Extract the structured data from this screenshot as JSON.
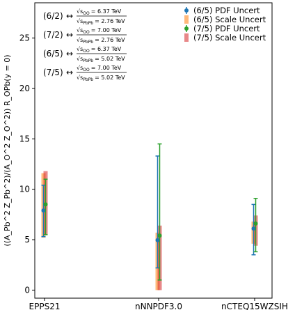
{
  "chart_data": {
    "type": "errorbar",
    "categories": [
      "EPPS21",
      "nNNPDF3.0",
      "nCTEQ15WZSIH"
    ],
    "ylabel": "((A_Pb^2 Z_Pb^2)/(A_O^2 Z_O^2)) R_OPb(y = 0)",
    "ylim": [
      -0.8,
      28.5
    ],
    "yticks": [
      0,
      5,
      10,
      15,
      20,
      25
    ],
    "grid": false,
    "legend_position": "top-right",
    "series": [
      {
        "name": "(6/5) PDF Uncert",
        "kind": "pdf",
        "color": "#1f77b4",
        "values": [
          7.9,
          4.95,
          6.1
        ],
        "low": [
          5.3,
          2.2,
          3.5
        ],
        "high": [
          10.4,
          13.3,
          8.5
        ]
      },
      {
        "name": "(6/5) Scale Uncert",
        "kind": "scale",
        "color": "#ff7f0e",
        "values": [
          7.9,
          4.95,
          6.1
        ],
        "low": [
          5.2,
          0.0,
          4.6
        ],
        "high": [
          11.6,
          5.7,
          6.8
        ]
      },
      {
        "name": "(7/5) PDF Uncert",
        "kind": "pdf",
        "color": "#2ca02c",
        "values": [
          8.5,
          5.4,
          6.6
        ],
        "low": [
          5.5,
          1.0,
          3.8
        ],
        "high": [
          11.0,
          14.5,
          9.1
        ]
      },
      {
        "name": "(7/5) Scale Uncert",
        "kind": "scale",
        "color": "#d62728",
        "values": [
          8.5,
          5.4,
          6.6
        ],
        "low": [
          5.5,
          0.0,
          4.4
        ],
        "high": [
          11.8,
          6.4,
          7.4
        ]
      }
    ],
    "annotations": [
      {
        "ratio": "(6/2)",
        "arrow": "↔",
        "num_label": "√s",
        "num_sub": "OO",
        "num_value": "= 6.37 TeV",
        "den_label": "√s",
        "den_sub": "PbPb",
        "den_value": "= 2.76 TeV"
      },
      {
        "ratio": "(7/2)",
        "arrow": "↔",
        "num_label": "√s",
        "num_sub": "OO",
        "num_value": "= 7.00 TeV",
        "den_label": "√s",
        "den_sub": "PbPb",
        "den_value": "= 2.76 TeV"
      },
      {
        "ratio": "(6/5)",
        "arrow": "↔",
        "num_label": "√s",
        "num_sub": "OO",
        "num_value": "= 6.37 TeV",
        "den_label": "√s",
        "den_sub": "PbPb",
        "den_value": "= 5.02 TeV"
      },
      {
        "ratio": "(7/5)",
        "arrow": "↔",
        "num_label": "√s",
        "num_sub": "OO",
        "num_value": "= 7.00 TeV",
        "den_label": "√s",
        "den_sub": "PbPb",
        "den_value": "= 5.02 TeV"
      }
    ]
  }
}
